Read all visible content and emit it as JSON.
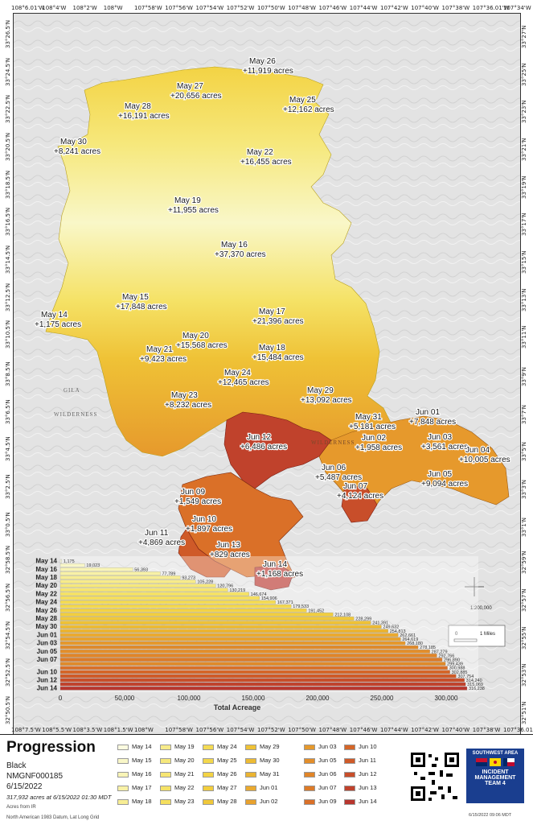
{
  "title": "Progression",
  "fire_name": "Black",
  "incident_id": "NMGNF000185",
  "date": "6/15/2022",
  "acres_note": "317,932 acres at 6/15/2022 01:30 MDT",
  "source_note": "Acres from IR",
  "datum_note": "North American 1983 Datum, Lat Long Grid",
  "printed_note": "6/15/2022 09:06 MDT",
  "scale_label": "1:200,000",
  "scale_bar_label": "1 Miles",
  "place_label_gila": "GILA",
  "place_label_wilderness": "WILDERNESS",
  "place_label_wilderness2": "WILDERNESS",
  "team_logo": {
    "line1": "SOUTHWEST AREA",
    "line2": "INCIDENT",
    "line3": "MANAGEMENT",
    "line4": "TEAM 4"
  },
  "coords": {
    "top": [
      "108°6.01'W",
      "108°4'W",
      "108°2'W",
      "108°W",
      "107°58'W",
      "107°56'W",
      "107°54'W",
      "107°52'W",
      "107°50'W",
      "107°48'W",
      "107°46'W",
      "107°44'W",
      "107°42'W",
      "107°40'W",
      "107°38'W",
      "107°36.01'W",
      "107°34'W"
    ],
    "bottom": [
      "108°7.5'W",
      "108°5.5'W",
      "108°3.5'W",
      "108°1.5'W",
      "108°W",
      "107°58'W",
      "107°56'W",
      "107°54'W",
      "107°52'W",
      "107°50'W",
      "107°48'W",
      "107°46'W",
      "107°44'W",
      "107°42'W",
      "107°40'W",
      "107°38'W",
      "107°36.01'W"
    ],
    "left": [
      "33°26.5'N",
      "33°24.5'N",
      "33°22.5'N",
      "33°20.5'N",
      "33°18.5'N",
      "33°16.5'N",
      "33°14.5'N",
      "33°12.5'N",
      "33°10.5'N",
      "33°8.5'N",
      "33°6.5'N",
      "33°4.5'N",
      "33°2.5'N",
      "33°0.5'N",
      "32°58.5'N",
      "32°56.5'N",
      "32°54.5'N",
      "32°52.5'N",
      "32°50.5'N"
    ],
    "right": [
      "33°27'N",
      "33°25'N",
      "33°23'N",
      "33°21'N",
      "33°19'N",
      "33°17'N",
      "33°15'N",
      "33°13'N",
      "33°11'N",
      "33°9'N",
      "33°7'N",
      "33°5'N",
      "33°3'N",
      "33°1'N",
      "32°59'N",
      "32°57'N",
      "32°55'N",
      "32°53'N",
      "32°51'N"
    ]
  },
  "map_labels": [
    {
      "date": "May 26",
      "acres": "+11,919 acres"
    },
    {
      "date": "May 27",
      "acres": "+20,656 acres"
    },
    {
      "date": "May 25",
      "acres": "+12,162 acres"
    },
    {
      "date": "May 28",
      "acres": "+16,191 acres"
    },
    {
      "date": "May 30",
      "acres": "+8,241 acres"
    },
    {
      "date": "May 22",
      "acres": "+16,455 acres"
    },
    {
      "date": "May 19",
      "acres": "+11,955 acres"
    },
    {
      "date": "May 16",
      "acres": "+37,370 acres"
    },
    {
      "date": "May 15",
      "acres": "+17,848 acres"
    },
    {
      "date": "May 14",
      "acres": "+1,175 acres"
    },
    {
      "date": "May 17",
      "acres": "+21,396 acres"
    },
    {
      "date": "May 20",
      "acres": "+15,568 acres"
    },
    {
      "date": "May 18",
      "acres": "+15,484 acres"
    },
    {
      "date": "May 21",
      "acres": "+9,423 acres"
    },
    {
      "date": "May 24",
      "acres": "+12,465 acres"
    },
    {
      "date": "May 23",
      "acres": "+8,232 acres"
    },
    {
      "date": "May 29",
      "acres": "+13,092 acres"
    },
    {
      "date": "May 31",
      "acres": "+5,181 acres"
    },
    {
      "date": "Jun 01",
      "acres": "+7,848 acres"
    },
    {
      "date": "Jun 12",
      "acres": "+6,486 acres"
    },
    {
      "date": "Jun 02",
      "acres": "+1,958 acres"
    },
    {
      "date": "Jun 03",
      "acres": "+3,561 acres"
    },
    {
      "date": "Jun 04",
      "acres": "+10,005 acres"
    },
    {
      "date": "Jun 06",
      "acres": "+5,487 acres"
    },
    {
      "date": "Jun 05",
      "acres": "+9,094 acres"
    },
    {
      "date": "Jun 07",
      "acres": "+4,124 acres"
    },
    {
      "date": "Jun 09",
      "acres": "+1,549 acres"
    },
    {
      "date": "Jun 10",
      "acres": "+1,897 acres"
    },
    {
      "date": "Jun 11",
      "acres": "+4,869 acres"
    },
    {
      "date": "Jun 13",
      "acres": "+829 acres"
    },
    {
      "date": "Jun 14",
      "acres": "+1,168 acres"
    }
  ],
  "chart_data": {
    "type": "bar",
    "orientation": "horizontal",
    "xlabel": "Total Acreage",
    "xlim": [
      0,
      325000
    ],
    "xticks": [
      0,
      50000,
      100000,
      150000,
      200000,
      250000,
      300000
    ],
    "xtick_labels": [
      "0",
      "50,000",
      "100,000",
      "150,000",
      "200,000",
      "250,000",
      "300,000"
    ],
    "categories": [
      "May 14",
      "May 15",
      "May 16",
      "May 17",
      "May 18",
      "May 19",
      "May 20",
      "May 21",
      "May 22",
      "May 23",
      "May 24",
      "May 25",
      "May 26",
      "May 27",
      "May 28",
      "May 29",
      "May 30",
      "May 31",
      "Jun 01",
      "Jun 02",
      "Jun 03",
      "Jun 04",
      "Jun 05",
      "Jun 06",
      "Jun 07",
      "Jun 08",
      "Jun 09",
      "Jun 10",
      "Jun 11",
      "Jun 12",
      "Jun 13",
      "Jun 14"
    ],
    "ytick_labels": [
      "May 14",
      "May 16",
      "May 18",
      "May 20",
      "May 22",
      "May 24",
      "May 26",
      "May 28",
      "May 30",
      "Jun 01",
      "Jun 03",
      "Jun 05",
      "Jun 07",
      "Jun 10",
      "Jun 12",
      "Jun 14"
    ],
    "values": [
      1175,
      19023,
      56393,
      77789,
      93273,
      105228,
      120796,
      130219,
      146674,
      154906,
      167371,
      179533,
      191452,
      212108,
      228299,
      241391,
      249632,
      254813,
      262661,
      264619,
      268180,
      278185,
      287279,
      292766,
      296890,
      299439,
      300988,
      302885,
      307754,
      314240,
      315069,
      316238
    ],
    "value_labels": [
      "1,175",
      "19,023",
      "56,393",
      "77,789",
      "93,273",
      "105,228",
      "120,796",
      "130,219",
      "146,674",
      "154,906",
      "167,371",
      "179,533",
      "191,452",
      "212,108",
      "228,299",
      "241,391",
      "249,632",
      "254,813",
      "262,661",
      "264,619",
      "268,180",
      "278,185",
      "287,279",
      "292,766",
      "296,890",
      "299,439",
      "300,988",
      "302,885",
      "307,754",
      "314,240",
      "315,069",
      "316,238"
    ]
  },
  "legend": [
    {
      "label": "May 14",
      "color": "#fbfbe0"
    },
    {
      "label": "May 15",
      "color": "#f9f7c8"
    },
    {
      "label": "May 16",
      "color": "#f8f4b6"
    },
    {
      "label": "May 17",
      "color": "#f8f1a6"
    },
    {
      "label": "May 18",
      "color": "#f7ed94"
    },
    {
      "label": "May 19",
      "color": "#f7eb8a"
    },
    {
      "label": "May 20",
      "color": "#f6e87c"
    },
    {
      "label": "May 21",
      "color": "#f6e572"
    },
    {
      "label": "May 22",
      "color": "#f5e266"
    },
    {
      "label": "May 23",
      "color": "#f5df5e"
    },
    {
      "label": "May 24",
      "color": "#f4db54"
    },
    {
      "label": "May 25",
      "color": "#f4d84c"
    },
    {
      "label": "May 26",
      "color": "#f3d344"
    },
    {
      "label": "May 27",
      "color": "#f2ce3e"
    },
    {
      "label": "May 28",
      "color": "#f0c83a"
    },
    {
      "label": "May 29",
      "color": "#efc236"
    },
    {
      "label": "May 30",
      "color": "#edbb34"
    },
    {
      "label": "May 31",
      "color": "#ebb432"
    },
    {
      "label": "Jun 01",
      "color": "#eaaa30"
    },
    {
      "label": "Jun 02",
      "color": "#e8a22e"
    },
    {
      "label": "Jun 03",
      "color": "#e6992c"
    },
    {
      "label": "Jun 05",
      "color": "#e38e2a"
    },
    {
      "label": "Jun 06",
      "color": "#e18528"
    },
    {
      "label": "Jun 07",
      "color": "#dd7b28"
    },
    {
      "label": "Jun 09",
      "color": "#da7028"
    },
    {
      "label": "Jun 10",
      "color": "#d56628"
    },
    {
      "label": "Jun 11",
      "color": "#cf5a28"
    },
    {
      "label": "Jun 12",
      "color": "#c84e2a"
    },
    {
      "label": "Jun 13",
      "color": "#c0422c"
    },
    {
      "label": "Jun 14",
      "color": "#b8362e"
    }
  ]
}
